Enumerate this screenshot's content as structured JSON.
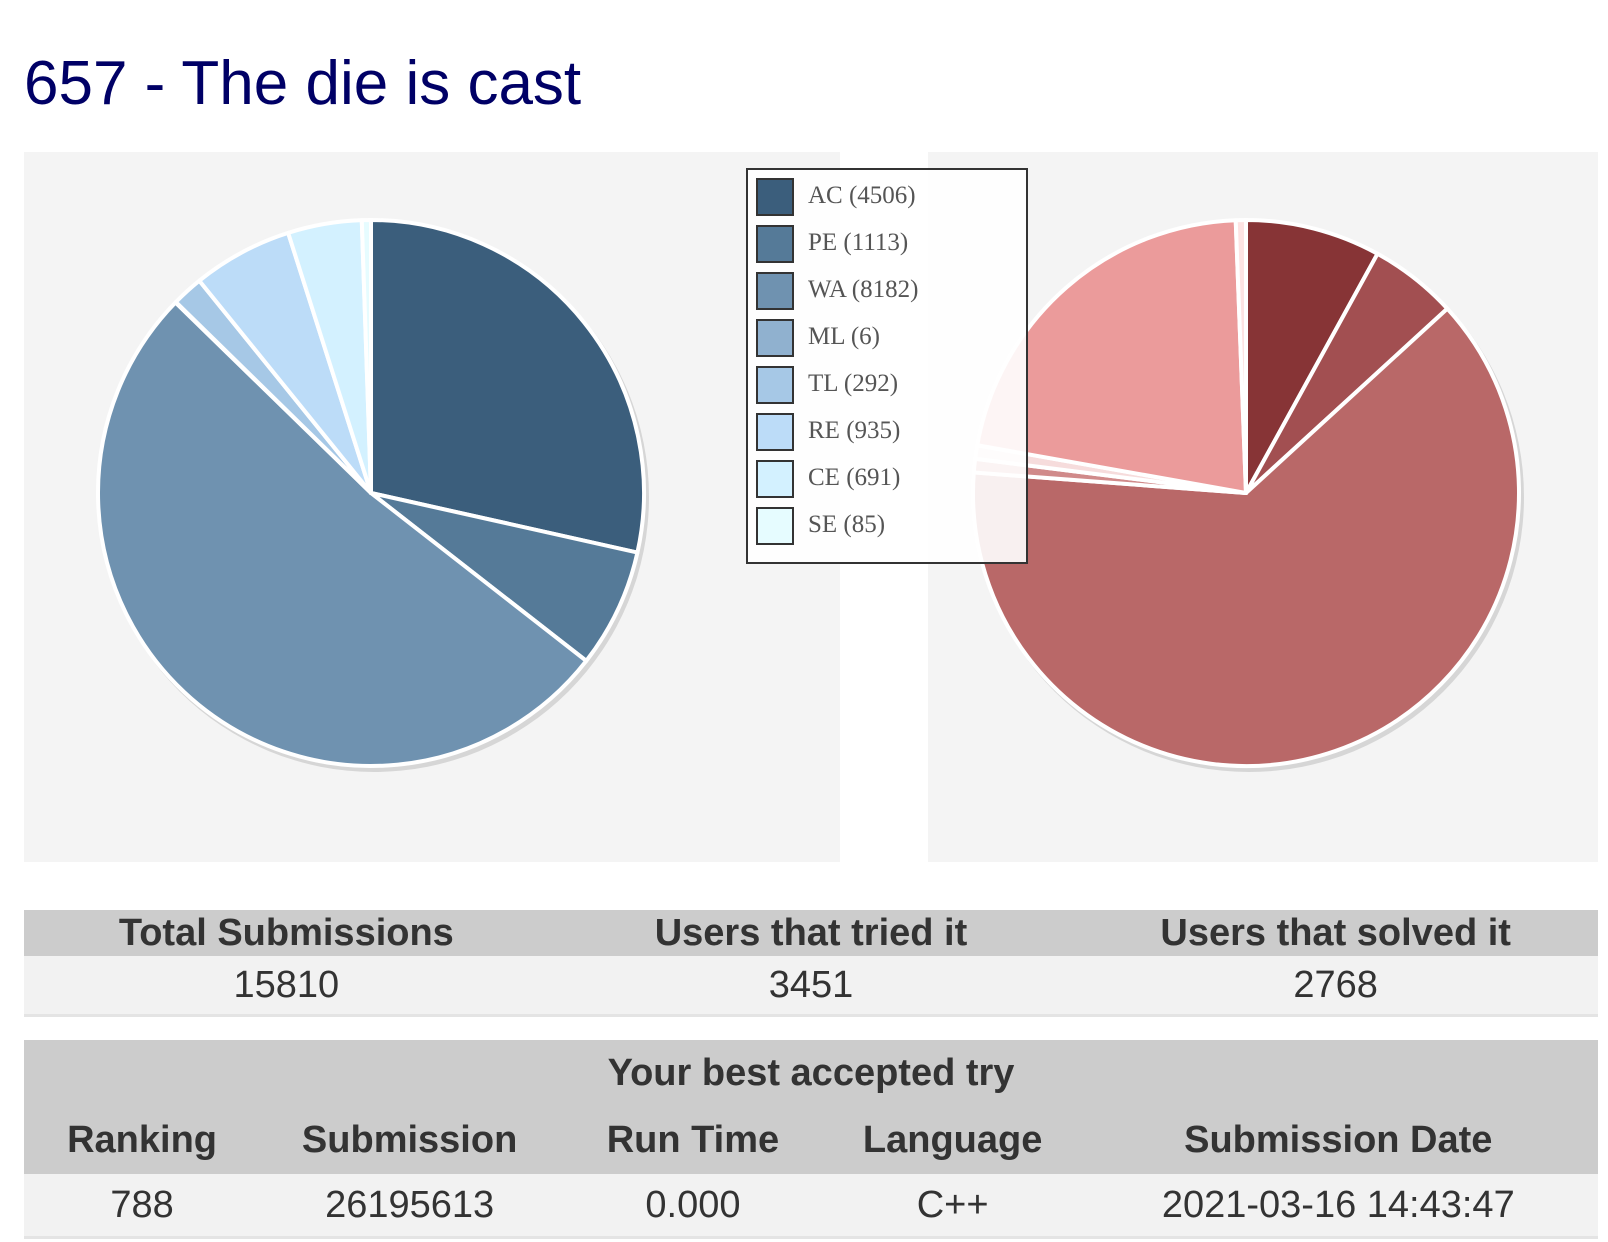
{
  "page": {
    "title": "657 - The die is cast"
  },
  "chart_data": [
    {
      "type": "pie",
      "title": "",
      "legend_position": "top-right",
      "slices": [
        {
          "label": "AC (4506)",
          "name": "AC",
          "value": 4506,
          "color": "#3b5e7c"
        },
        {
          "label": "PE (1113)",
          "name": "PE",
          "value": 1113,
          "color": "#557a98"
        },
        {
          "label": "WA (8182)",
          "name": "WA",
          "value": 8182,
          "color": "#6f92b0"
        },
        {
          "label": "ML (6)",
          "name": "ML",
          "value": 6,
          "color": "#90b1cf"
        },
        {
          "label": "TL (292)",
          "name": "TL",
          "value": 292,
          "color": "#a6c8e6"
        },
        {
          "label": "RE (935)",
          "name": "RE",
          "value": 935,
          "color": "#bcdcf8"
        },
        {
          "label": "CE (691)",
          "name": "CE",
          "value": 691,
          "color": "#d3f1ff"
        },
        {
          "label": "SE (85)",
          "name": "SE",
          "value": 85,
          "color": "#e6fcff"
        }
      ]
    },
    {
      "type": "pie",
      "title": "",
      "slices": [
        {
          "name": "slice-1",
          "value": 8.0,
          "color": "#873436"
        },
        {
          "name": "slice-2",
          "value": 5.2,
          "color": "#a24f51"
        },
        {
          "name": "slice-3",
          "value": 63.0,
          "color": "#b96868"
        },
        {
          "name": "slice-4",
          "value": 0.8,
          "color": "#d08a8a"
        },
        {
          "name": "slice-5",
          "value": 0.8,
          "color": "#f6dcdc"
        },
        {
          "name": "slice-6",
          "value": 21.6,
          "color": "#eb9b9b"
        },
        {
          "name": "slice-7",
          "value": 0.6,
          "color": "#fde3e3"
        }
      ]
    }
  ],
  "stats": {
    "headers": [
      "Total Submissions",
      "Users that tried it",
      "Users that solved it"
    ],
    "values": [
      "15810",
      "3451",
      "2768"
    ]
  },
  "best_try": {
    "caption": "Your best accepted try",
    "headers": [
      "Ranking",
      "Submission",
      "Run Time",
      "Language",
      "Submission Date"
    ],
    "values": [
      "788",
      "26195613",
      "0.000",
      "C++",
      "2021-03-16 14:43:47"
    ]
  }
}
